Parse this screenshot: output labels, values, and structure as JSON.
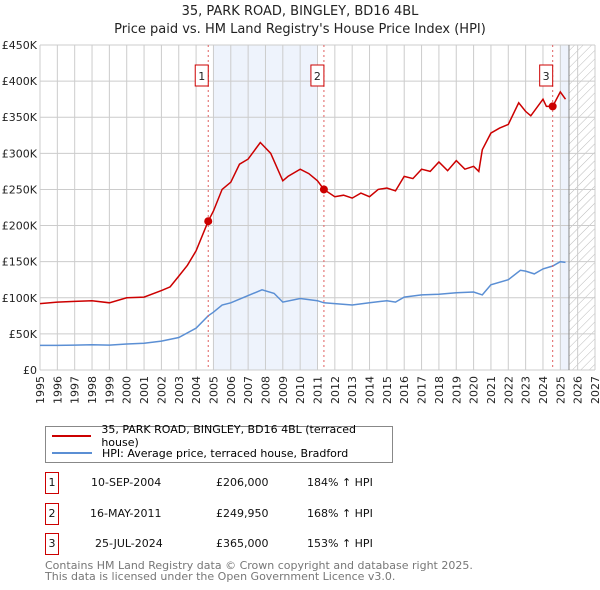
{
  "title": "35, PARK ROAD, BINGLEY, BD16 4BL",
  "subtitle": "Price paid vs. HM Land Registry's House Price Index (HPI)",
  "chart_data": {
    "type": "line",
    "title": "35, PARK ROAD, BINGLEY, BD16 4BL",
    "xlim": [
      1995,
      2027
    ],
    "ylim": [
      0,
      450000
    ],
    "yticks": [
      0,
      50000,
      100000,
      150000,
      200000,
      250000,
      300000,
      350000,
      400000,
      450000
    ],
    "ytick_labels": [
      "£0",
      "£50K",
      "£100K",
      "£150K",
      "£200K",
      "£250K",
      "£300K",
      "£350K",
      "£400K",
      "£450K"
    ],
    "xticks": [
      1995,
      1996,
      1997,
      1998,
      1999,
      2000,
      2001,
      2002,
      2003,
      2004,
      2005,
      2006,
      2007,
      2008,
      2009,
      2010,
      2011,
      2012,
      2013,
      2014,
      2015,
      2016,
      2017,
      2018,
      2019,
      2020,
      2021,
      2022,
      2023,
      2024,
      2025,
      2026,
      2027
    ],
    "grid": true,
    "series": [
      {
        "name": "35, PARK ROAD, BINGLEY, BD16 4BL (terraced house)",
        "color": "#cc0000",
        "x": [
          1995,
          1996,
          1997,
          1998,
          1999,
          2000,
          2001,
          2002,
          2002.5,
          2003,
          2003.5,
          2004,
          2004.7,
          2005,
          2005.5,
          2006,
          2006.5,
          2007,
          2007.7,
          2008.3,
          2009,
          2009.3,
          2010,
          2010.5,
          2011,
          2011.37,
          2012,
          2012.5,
          2013,
          2013.5,
          2014,
          2014.5,
          2015,
          2015.5,
          2016,
          2016.5,
          2017,
          2017.5,
          2018,
          2018.5,
          2019,
          2019.5,
          2020,
          2020.3,
          2020.5,
          2021,
          2021.5,
          2022,
          2022.6,
          2023,
          2023.3,
          2024,
          2024.2,
          2024.56,
          2025,
          2025.3
        ],
        "y": [
          92000,
          94000,
          95000,
          96000,
          93000,
          100000,
          101000,
          110000,
          115000,
          130000,
          145000,
          165000,
          206000,
          220000,
          250000,
          260000,
          285000,
          292000,
          315000,
          300000,
          262000,
          268000,
          278000,
          272000,
          262000,
          249950,
          240000,
          242000,
          238000,
          245000,
          240000,
          250000,
          252000,
          248000,
          268000,
          265000,
          278000,
          275000,
          288000,
          276000,
          290000,
          278000,
          282000,
          275000,
          305000,
          328000,
          335000,
          340000,
          370000,
          358000,
          352000,
          375000,
          365000,
          365000,
          385000,
          375000
        ]
      },
      {
        "name": "HPI: Average price, terraced house, Bradford",
        "color": "#5b8fd4",
        "x": [
          1995,
          1996,
          1997,
          1998,
          1999,
          2000,
          2001,
          2002,
          2003,
          2004,
          2004.7,
          2005,
          2005.5,
          2006,
          2007,
          2007.8,
          2008.5,
          2009,
          2010,
          2011,
          2011.37,
          2012,
          2013,
          2014,
          2015,
          2015.5,
          2016,
          2017,
          2018,
          2019,
          2020,
          2020.5,
          2021,
          2022,
          2022.7,
          2023,
          2023.5,
          2024,
          2024.56,
          2025,
          2025.3
        ],
        "y": [
          34000,
          34000,
          34500,
          35000,
          34500,
          36000,
          37000,
          40000,
          45000,
          58000,
          75000,
          80000,
          90000,
          93000,
          103000,
          111000,
          106000,
          94000,
          99000,
          96000,
          93000,
          92000,
          90000,
          93000,
          96000,
          94000,
          101000,
          104000,
          105000,
          107000,
          108000,
          104000,
          118000,
          125000,
          138000,
          137000,
          133000,
          140000,
          144000,
          150000,
          149000
        ]
      }
    ],
    "sales": [
      {
        "label": "1",
        "x": 2004.7,
        "y": 206000
      },
      {
        "label": "2",
        "x": 2011.37,
        "y": 249950
      },
      {
        "label": "3",
        "x": 2024.56,
        "y": 365000
      }
    ],
    "shaded_ranges": [
      [
        2005,
        2011
      ],
      [
        2025,
        2025.5
      ]
    ],
    "forecast_hatch": [
      2025.5,
      2027
    ]
  },
  "legend": [
    {
      "label": "35, PARK ROAD, BINGLEY, BD16 4BL (terraced house)",
      "color": "#cc0000"
    },
    {
      "label": "HPI: Average price, terraced house, Bradford",
      "color": "#5b8fd4"
    }
  ],
  "transactions": [
    {
      "num": "1",
      "date": "10-SEP-2004",
      "price": "£206,000",
      "hpi": "184% ↑ HPI"
    },
    {
      "num": "2",
      "date": "16-MAY-2011",
      "price": "£249,950",
      "hpi": "168% ↑ HPI"
    },
    {
      "num": "3",
      "date": "25-JUL-2024",
      "price": "£365,000",
      "hpi": "153% ↑ HPI"
    }
  ],
  "footer": [
    "Contains HM Land Registry data © Crown copyright and database right 2025.",
    "This data is licensed under the Open Government Licence v3.0."
  ]
}
